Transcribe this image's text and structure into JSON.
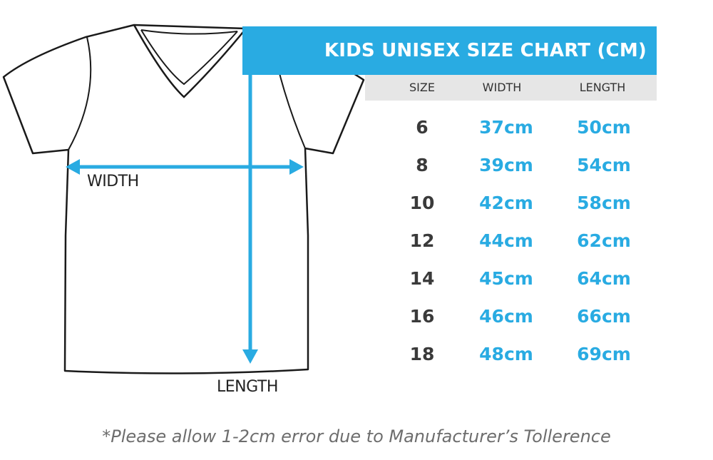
{
  "chart": {
    "title": "KIDS UNISEX SIZE CHART (CM)",
    "columns": [
      "SIZE",
      "WIDTH",
      "LENGTH"
    ],
    "rows": [
      {
        "size": "6",
        "width": "37cm",
        "length": "50cm"
      },
      {
        "size": "8",
        "width": "39cm",
        "length": "54cm"
      },
      {
        "size": "10",
        "width": "42cm",
        "length": "58cm"
      },
      {
        "size": "12",
        "width": "44cm",
        "length": "62cm"
      },
      {
        "size": "14",
        "width": "45cm",
        "length": "64cm"
      },
      {
        "size": "16",
        "width": "46cm",
        "length": "66cm"
      },
      {
        "size": "18",
        "width": "48cm",
        "length": "69cm"
      }
    ]
  },
  "diagram": {
    "width_label": "WIDTH",
    "length_label": "LENGTH"
  },
  "footnote": "*Please allow 1-2cm error due to Manufacturer’s Tollerence",
  "colors": {
    "accent": "#29abe2",
    "header_bg": "#e6e6e6",
    "size_text": "#3a3a3a",
    "footnote_text": "#6d6d6d"
  },
  "icons": {
    "garment": "v-neck-tshirt-icon",
    "width_measure": "double-arrow-horizontal-icon",
    "length_measure": "double-arrow-vertical-icon"
  }
}
